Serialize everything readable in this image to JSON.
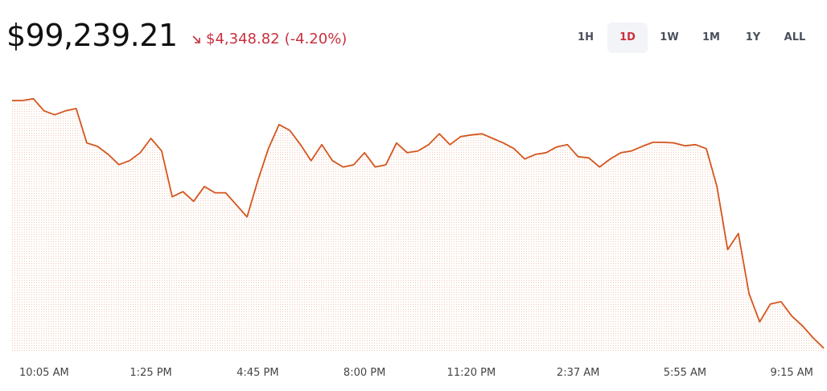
{
  "header": {
    "price": "$99,239.21",
    "change": "$4,348.82",
    "change_pct": "(-4.20%)"
  },
  "tabs": [
    "1H",
    "1D",
    "1W",
    "1M",
    "1Y",
    "ALL"
  ],
  "chart_data": {
    "type": "line",
    "color": "#d4561e",
    "categories": [
      null,
      null,
      null,
      "10:05 AM",
      null,
      null,
      null,
      null,
      null,
      null,
      null,
      null,
      null,
      "1:25 PM",
      null,
      null,
      null,
      null,
      null,
      null,
      null,
      null,
      null,
      "4:45 PM",
      null,
      null,
      null,
      null,
      null,
      null,
      null,
      null,
      null,
      "8:00 PM",
      null,
      null,
      null,
      null,
      null,
      null,
      null,
      null,
      null,
      "11:20 PM",
      null,
      null,
      null,
      null,
      null,
      null,
      null,
      null,
      null,
      "2:37 AM",
      null,
      null,
      null,
      null,
      null,
      null,
      null,
      null,
      null,
      "5:55 AM",
      null,
      null,
      null,
      null,
      null,
      null,
      null,
      null,
      null,
      "9:15 AM",
      null,
      null,
      null
    ],
    "values": [
      103560,
      103560,
      103590,
      103380,
      103310,
      103380,
      103420,
      102820,
      102760,
      102620,
      102440,
      102510,
      102650,
      102900,
      102680,
      101880,
      101970,
      101800,
      102060,
      101950,
      101950,
      101740,
      101530,
      102160,
      102720,
      103140,
      103040,
      102790,
      102510,
      102790,
      102510,
      102400,
      102440,
      102650,
      102400,
      102440,
      102820,
      102650,
      102680,
      102790,
      102980,
      102790,
      102930,
      102960,
      102980,
      102900,
      102820,
      102720,
      102540,
      102620,
      102650,
      102750,
      102790,
      102580,
      102560,
      102400,
      102540,
      102650,
      102680,
      102760,
      102830,
      102830,
      102820,
      102770,
      102790,
      102720,
      102060,
      100960,
      101240,
      100190,
      99700,
      100010,
      100050,
      99800,
      99630,
      99420,
      99239.21
    ],
    "ylim": [
      99180,
      103910
    ]
  }
}
